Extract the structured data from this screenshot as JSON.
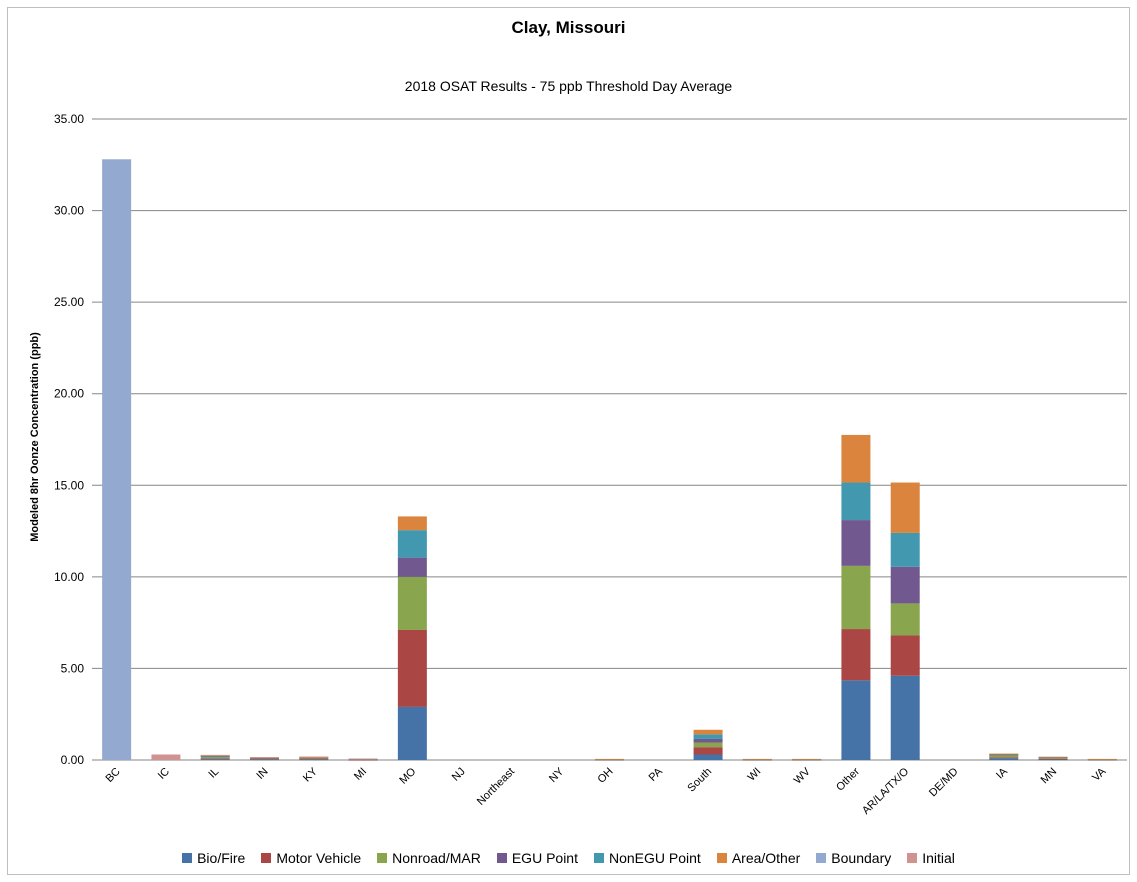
{
  "chart_data": {
    "type": "bar",
    "stacked": true,
    "title": "Clay, Missouri",
    "subtitle": "2018 OSAT Results - 75 ppb Threshold Day Average",
    "ylabel": "Modeled 8hr Oonze Concentration (ppb)",
    "xlabel": "",
    "ylim": [
      0,
      35
    ],
    "yticks": [
      "0.00",
      "5.00",
      "10.00",
      "15.00",
      "20.00",
      "25.00",
      "30.00",
      "35.00"
    ],
    "grid": true,
    "legend_position": "bottom",
    "categories": [
      "BC",
      "IC",
      "IL",
      "IN",
      "KY",
      "MI",
      "MO",
      "NJ",
      "Northeast",
      "NY",
      "OH",
      "PA",
      "South",
      "WI",
      "WV",
      "Other",
      "AR/LA/TX/O",
      "DE/MD",
      "IA",
      "MN",
      "VA"
    ],
    "series": [
      {
        "name": "Bio/Fire",
        "color": "#4572a7",
        "values": [
          0,
          0,
          0.05,
          0.03,
          0.03,
          0.01,
          2.9,
          0,
          0,
          0,
          0.01,
          0,
          0.3,
          0.01,
          0.01,
          4.35,
          4.6,
          0,
          0.1,
          0.03,
          0.01
        ]
      },
      {
        "name": "Motor Vehicle",
        "color": "#aa4643",
        "values": [
          0,
          0,
          0.04,
          0.02,
          0.02,
          0.01,
          4.2,
          0,
          0,
          0,
          0.01,
          0,
          0.4,
          0.01,
          0.01,
          2.8,
          2.2,
          0,
          0.05,
          0.03,
          0.01
        ]
      },
      {
        "name": "Nonroad/MAR",
        "color": "#89a54e",
        "values": [
          0,
          0,
          0.08,
          0.04,
          0.04,
          0.02,
          2.9,
          0,
          0,
          0,
          0.01,
          0,
          0.25,
          0.01,
          0.01,
          3.45,
          1.75,
          0,
          0.12,
          0.05,
          0.01
        ]
      },
      {
        "name": "EGU Point",
        "color": "#71588f",
        "values": [
          0,
          0,
          0.04,
          0.02,
          0.03,
          0.01,
          1.05,
          0,
          0,
          0,
          0.01,
          0,
          0.2,
          0.01,
          0.01,
          2.5,
          2.0,
          0,
          0.03,
          0.03,
          0.01
        ]
      },
      {
        "name": "NonEGU Point",
        "color": "#4198af",
        "values": [
          0,
          0,
          0.03,
          0.02,
          0.02,
          0.01,
          1.5,
          0,
          0,
          0,
          0.01,
          0,
          0.25,
          0.01,
          0.01,
          2.05,
          1.85,
          0,
          0.03,
          0.02,
          0.01
        ]
      },
      {
        "name": "Area/Other",
        "color": "#db843d",
        "values": [
          0,
          0,
          0.03,
          0.02,
          0.02,
          0.01,
          0.75,
          0,
          0,
          0,
          0.01,
          0,
          0.25,
          0.01,
          0.01,
          2.6,
          2.75,
          0,
          0.02,
          0.02,
          0.01
        ]
      },
      {
        "name": "Boundary",
        "color": "#93a9cf",
        "values": [
          32.8,
          0,
          0,
          0,
          0,
          0,
          0,
          0,
          0,
          0,
          0,
          0,
          0,
          0,
          0,
          0,
          0,
          0,
          0,
          0,
          0
        ]
      },
      {
        "name": "Initial",
        "color": "#d19392",
        "values": [
          0,
          0.3,
          0.01,
          0.01,
          0.03,
          0.01,
          0,
          0,
          0,
          0,
          0,
          0,
          0,
          0,
          0,
          0,
          0,
          0,
          0,
          0,
          0
        ]
      }
    ]
  }
}
